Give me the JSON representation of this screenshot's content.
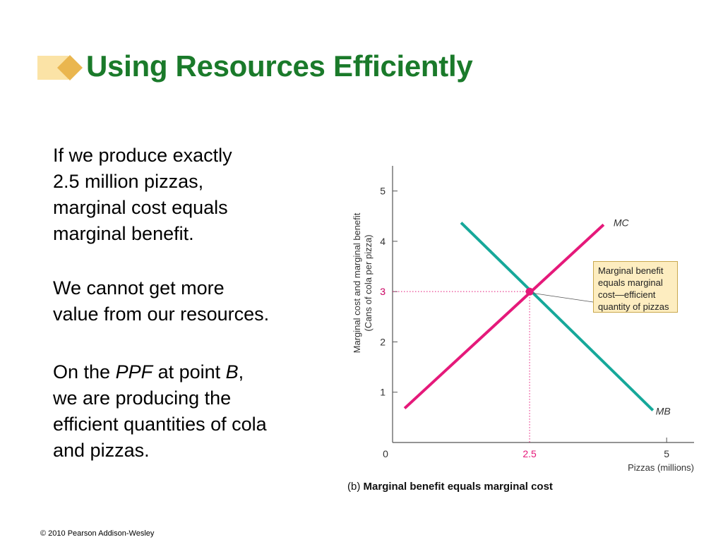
{
  "slide": {
    "title": "Using Resources Efficiently",
    "footer": "© 2010 Pearson Addison-Wesley",
    "paragraphs": [
      {
        "lines": [
          "If we produce exactly",
          "2.5 million pizzas,",
          "marginal cost equals",
          "marginal benefit."
        ]
      },
      {
        "lines": [
          "We cannot get more",
          "value from our resources."
        ]
      },
      {
        "parts": [
          "On the ",
          "PPF",
          " at point ",
          "B",
          ","
        ],
        "lines": [
          "we are producing the",
          "efficient quantities of cola",
          "and pizzas."
        ]
      }
    ]
  },
  "chart_data": {
    "type": "line",
    "ylabel_lines": [
      "Marginal cost and marginal benefit",
      "(Cans of cola per pizza)"
    ],
    "xlabel": "Pizzas (millions)",
    "caption_prefix": "(b)",
    "caption": "Marginal benefit equals marginal cost",
    "xlim": [
      0,
      5.5
    ],
    "ylim": [
      0,
      5.5
    ],
    "x_ticks": [
      0,
      5
    ],
    "x_tick_labels": [
      "0",
      "5"
    ],
    "y_ticks": [
      1,
      2,
      3,
      4,
      5
    ],
    "y_tick_labels": [
      "1",
      "2",
      "3",
      "4",
      "5"
    ],
    "series": [
      {
        "name": "MC",
        "color": "#e5197a",
        "x": [
          0.22,
          3.85
        ],
        "y": [
          0.68,
          4.33
        ]
      },
      {
        "name": "MB",
        "color": "#16a89a",
        "x": [
          1.25,
          4.75
        ],
        "y": [
          4.37,
          0.64
        ]
      }
    ],
    "highlight": {
      "x": 2.5,
      "y": 3,
      "x_label": "2.5",
      "y_label": "3",
      "color": "#e5197a"
    },
    "callout_lines": [
      "Marginal benefit",
      "equals marginal",
      "cost—efficient",
      "quantity of pizzas"
    ],
    "grid": false
  },
  "colors": {
    "title": "#1a7a2a",
    "mc": "#e5197a",
    "mb": "#16a89a",
    "callout_bg": "#fdedc0"
  }
}
